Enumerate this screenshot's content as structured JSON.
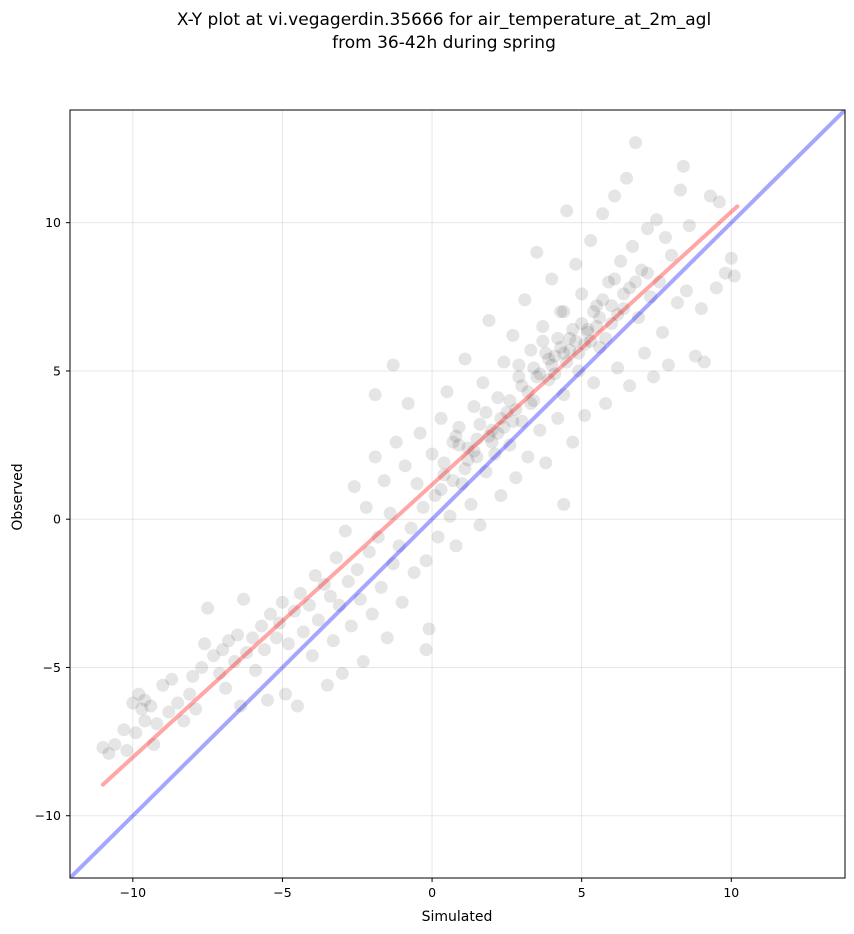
{
  "chart_data": {
    "type": "scatter",
    "title": "X-Y plot at vi.vegagerdin.35666 for air_temperature_at_2m_agl",
    "subtitle": "from 36-42h during spring",
    "xlabel": "Simulated",
    "ylabel": "Observed",
    "xlim": [
      -12.1,
      13.8
    ],
    "ylim": [
      -12.1,
      13.8
    ],
    "xticks": [
      -10,
      -5,
      0,
      5,
      10
    ],
    "yticks": [
      -10,
      -5,
      0,
      5,
      10
    ],
    "xtick_labels": [
      "−10",
      "−5",
      "0",
      "5",
      "10"
    ],
    "ytick_labels": [
      "−10",
      "−5",
      "0",
      "5",
      "10"
    ],
    "grid": true,
    "point_color": "#000000",
    "point_alpha": 0.1,
    "points": [
      [
        -11.0,
        -7.7
      ],
      [
        -10.8,
        -7.9
      ],
      [
        -10.6,
        -7.6
      ],
      [
        -10.3,
        -7.1
      ],
      [
        -10.2,
        -7.8
      ],
      [
        -10.0,
        -6.2
      ],
      [
        -9.9,
        -7.2
      ],
      [
        -9.8,
        -5.9
      ],
      [
        -9.7,
        -6.4
      ],
      [
        -9.6,
        -6.1
      ],
      [
        -9.6,
        -6.8
      ],
      [
        -9.4,
        -6.3
      ],
      [
        -9.3,
        -7.6
      ],
      [
        -9.2,
        -6.9
      ],
      [
        -9.0,
        -5.6
      ],
      [
        -8.8,
        -6.5
      ],
      [
        -8.7,
        -5.4
      ],
      [
        -8.5,
        -6.2
      ],
      [
        -8.3,
        -6.8
      ],
      [
        -8.1,
        -5.9
      ],
      [
        -8.0,
        -5.3
      ],
      [
        -7.9,
        -6.4
      ],
      [
        -7.7,
        -5.0
      ],
      [
        -7.6,
        -4.2
      ],
      [
        -7.5,
        -3.0
      ],
      [
        -7.3,
        -4.6
      ],
      [
        -7.1,
        -5.2
      ],
      [
        -7.0,
        -4.4
      ],
      [
        -6.9,
        -5.7
      ],
      [
        -6.8,
        -4.1
      ],
      [
        -6.6,
        -4.8
      ],
      [
        -6.5,
        -3.9
      ],
      [
        -6.4,
        -6.3
      ],
      [
        -6.3,
        -2.7
      ],
      [
        -6.2,
        -4.5
      ],
      [
        -6.0,
        -4.0
      ],
      [
        -5.9,
        -5.1
      ],
      [
        -5.7,
        -3.6
      ],
      [
        -5.6,
        -4.4
      ],
      [
        -5.5,
        -6.1
      ],
      [
        -5.4,
        -3.2
      ],
      [
        -5.2,
        -4.0
      ],
      [
        -5.1,
        -3.5
      ],
      [
        -5.0,
        -2.8
      ],
      [
        -4.9,
        -5.9
      ],
      [
        -4.8,
        -4.2
      ],
      [
        -4.6,
        -3.1
      ],
      [
        -4.5,
        -6.3
      ],
      [
        -4.4,
        -2.5
      ],
      [
        -4.3,
        -3.8
      ],
      [
        -4.1,
        -2.9
      ],
      [
        -4.0,
        -4.6
      ],
      [
        -3.9,
        -1.9
      ],
      [
        -3.8,
        -3.4
      ],
      [
        -3.6,
        -2.2
      ],
      [
        -3.5,
        -5.6
      ],
      [
        -3.4,
        -2.6
      ],
      [
        -3.3,
        -4.1
      ],
      [
        -3.2,
        -1.3
      ],
      [
        -3.1,
        -2.9
      ],
      [
        -3.0,
        -5.2
      ],
      [
        -2.9,
        -0.4
      ],
      [
        -2.8,
        -2.1
      ],
      [
        -2.7,
        -3.6
      ],
      [
        -2.6,
        1.1
      ],
      [
        -2.5,
        -1.7
      ],
      [
        -2.4,
        -2.7
      ],
      [
        -2.3,
        -4.8
      ],
      [
        -2.2,
        0.4
      ],
      [
        -2.1,
        -1.1
      ],
      [
        -2.0,
        -3.2
      ],
      [
        -1.9,
        2.1
      ],
      [
        -1.9,
        4.2
      ],
      [
        -1.8,
        -0.6
      ],
      [
        -1.7,
        -2.3
      ],
      [
        -1.6,
        1.3
      ],
      [
        -1.5,
        -4.0
      ],
      [
        -1.4,
        0.2
      ],
      [
        -1.3,
        -1.5
      ],
      [
        -1.3,
        5.2
      ],
      [
        -1.2,
        2.6
      ],
      [
        -1.1,
        -0.9
      ],
      [
        -1.0,
        -2.8
      ],
      [
        -0.9,
        1.8
      ],
      [
        -0.8,
        3.9
      ],
      [
        -0.7,
        -0.3
      ],
      [
        -0.6,
        -1.8
      ],
      [
        -0.5,
        1.2
      ],
      [
        -0.4,
        2.9
      ],
      [
        -0.3,
        0.4
      ],
      [
        -0.2,
        -1.4
      ],
      [
        -0.2,
        -4.4
      ],
      [
        -0.1,
        -3.7
      ],
      [
        0.0,
        2.2
      ],
      [
        0.1,
        0.8
      ],
      [
        0.2,
        -0.6
      ],
      [
        0.3,
        3.4
      ],
      [
        0.4,
        1.5
      ],
      [
        0.5,
        4.3
      ],
      [
        0.6,
        0.1
      ],
      [
        0.7,
        2.6
      ],
      [
        0.8,
        -0.9
      ],
      [
        0.9,
        3.1
      ],
      [
        1.0,
        1.2
      ],
      [
        1.1,
        5.4
      ],
      [
        1.2,
        2.0
      ],
      [
        1.3,
        0.5
      ],
      [
        1.4,
        3.8
      ],
      [
        1.5,
        2.7
      ],
      [
        1.6,
        -0.2
      ],
      [
        1.7,
        4.6
      ],
      [
        1.8,
        1.6
      ],
      [
        1.9,
        6.7
      ],
      [
        2.0,
        3.0
      ],
      [
        2.1,
        2.2
      ],
      [
        2.2,
        4.1
      ],
      [
        2.3,
        0.8
      ],
      [
        2.4,
        5.3
      ],
      [
        2.5,
        3.6
      ],
      [
        2.6,
        2.5
      ],
      [
        2.7,
        6.2
      ],
      [
        2.8,
        1.4
      ],
      [
        2.9,
        4.8
      ],
      [
        3.0,
        3.3
      ],
      [
        3.1,
        7.4
      ],
      [
        3.2,
        2.1
      ],
      [
        3.3,
        5.7
      ],
      [
        3.4,
        4.0
      ],
      [
        3.5,
        9.0
      ],
      [
        3.6,
        3.0
      ],
      [
        3.7,
        6.5
      ],
      [
        3.8,
        1.9
      ],
      [
        3.9,
        4.7
      ],
      [
        4.0,
        8.1
      ],
      [
        4.1,
        5.5
      ],
      [
        4.2,
        3.4
      ],
      [
        4.3,
        7.0
      ],
      [
        4.4,
        4.2
      ],
      [
        4.4,
        0.5
      ],
      [
        4.5,
        10.4
      ],
      [
        4.6,
        6.1
      ],
      [
        4.7,
        2.6
      ],
      [
        4.8,
        8.6
      ],
      [
        4.9,
        5.0
      ],
      [
        5.0,
        7.6
      ],
      [
        5.1,
        3.5
      ],
      [
        5.2,
        6.4
      ],
      [
        5.3,
        9.4
      ],
      [
        5.4,
        4.6
      ],
      [
        5.5,
        7.2
      ],
      [
        5.6,
        5.8
      ],
      [
        5.7,
        10.3
      ],
      [
        5.8,
        3.9
      ],
      [
        5.9,
        8.0
      ],
      [
        6.0,
        6.6
      ],
      [
        6.1,
        10.9
      ],
      [
        6.2,
        5.1
      ],
      [
        6.3,
        8.7
      ],
      [
        6.4,
        7.1
      ],
      [
        6.5,
        11.5
      ],
      [
        6.6,
        4.5
      ],
      [
        6.7,
        9.2
      ],
      [
        6.8,
        12.7
      ],
      [
        6.9,
        6.8
      ],
      [
        7.0,
        8.4
      ],
      [
        7.1,
        5.6
      ],
      [
        7.2,
        9.8
      ],
      [
        7.3,
        7.5
      ],
      [
        7.4,
        4.8
      ],
      [
        7.5,
        10.1
      ],
      [
        7.6,
        8.0
      ],
      [
        7.7,
        6.3
      ],
      [
        7.8,
        9.5
      ],
      [
        7.9,
        5.2
      ],
      [
        8.0,
        8.9
      ],
      [
        8.2,
        7.3
      ],
      [
        8.3,
        11.1
      ],
      [
        8.4,
        11.9
      ],
      [
        8.5,
        7.7
      ],
      [
        8.6,
        9.9
      ],
      [
        8.8,
        5.5
      ],
      [
        9.0,
        7.1
      ],
      [
        9.1,
        5.3
      ],
      [
        9.3,
        10.9
      ],
      [
        9.5,
        7.8
      ],
      [
        9.6,
        10.7
      ],
      [
        9.8,
        8.3
      ],
      [
        10.1,
        8.2
      ],
      [
        10.0,
        8.8
      ],
      [
        0.4,
        1.9
      ],
      [
        0.8,
        2.8
      ],
      [
        1.2,
        2.4
      ],
      [
        1.6,
        3.2
      ],
      [
        2.0,
        2.6
      ],
      [
        2.4,
        3.1
      ],
      [
        2.8,
        3.7
      ],
      [
        3.2,
        4.3
      ],
      [
        3.6,
        4.9
      ],
      [
        4.0,
        5.2
      ],
      [
        4.4,
        5.6
      ],
      [
        4.8,
        6.0
      ],
      [
        5.2,
        6.3
      ],
      [
        5.6,
        6.8
      ],
      [
        6.0,
        7.2
      ],
      [
        6.4,
        7.6
      ],
      [
        6.8,
        8.0
      ],
      [
        7.2,
        8.3
      ],
      [
        1.4,
        2.3
      ],
      [
        1.8,
        3.6
      ],
      [
        2.2,
        2.9
      ],
      [
        2.6,
        4.0
      ],
      [
        3.0,
        4.5
      ],
      [
        3.4,
        5.1
      ],
      [
        3.8,
        5.6
      ],
      [
        4.2,
        6.1
      ],
      [
        4.6,
        5.7
      ],
      [
        5.0,
        6.6
      ],
      [
        5.4,
        7.0
      ],
      [
        5.8,
        6.1
      ],
      [
        6.2,
        6.9
      ],
      [
        6.6,
        7.8
      ],
      [
        3.9,
        5.4
      ],
      [
        4.3,
        5.8
      ],
      [
        4.7,
        6.4
      ],
      [
        5.1,
        5.9
      ],
      [
        5.5,
        6.5
      ],
      [
        3.5,
        4.8
      ],
      [
        2.7,
        3.3
      ],
      [
        1.9,
        2.8
      ],
      [
        1.1,
        1.7
      ],
      [
        0.7,
        1.3
      ],
      [
        4.1,
        4.9
      ],
      [
        4.5,
        5.3
      ],
      [
        4.9,
        5.6
      ],
      [
        5.3,
        6.0
      ],
      [
        5.7,
        7.4
      ],
      [
        6.1,
        8.1
      ],
      [
        3.3,
        3.9
      ],
      [
        2.3,
        3.4
      ],
      [
        1.5,
        2.1
      ],
      [
        0.9,
        2.5
      ],
      [
        0.3,
        1.0
      ],
      [
        2.9,
        5.2
      ],
      [
        3.7,
        6.0
      ],
      [
        4.4,
        7.0
      ]
    ],
    "fit_line": {
      "color": "#ff0000",
      "alpha": 0.35,
      "x": [
        -11.0,
        10.2
      ],
      "y": [
        -8.95,
        10.55
      ]
    },
    "identity_line": {
      "color": "#0000ff",
      "alpha": 0.35,
      "x": [
        -12.1,
        13.8
      ],
      "y": [
        -12.1,
        13.8
      ]
    }
  }
}
